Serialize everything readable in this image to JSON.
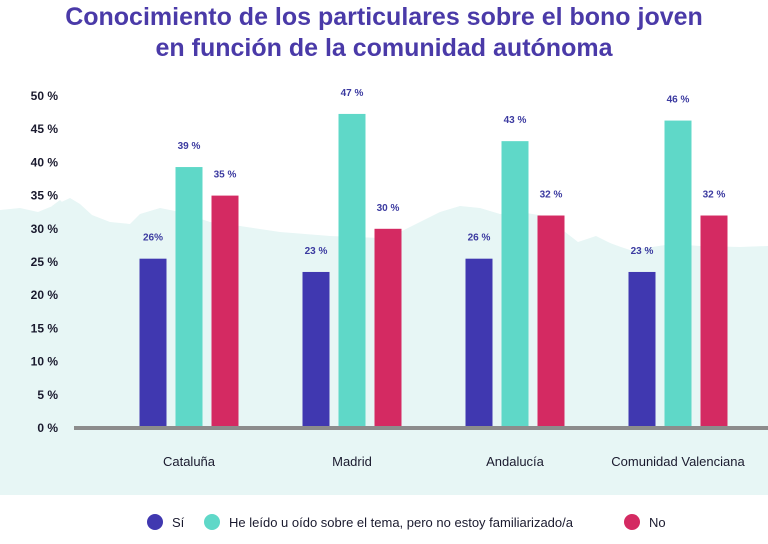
{
  "chart_data": {
    "type": "bar",
    "title": [
      "Conocimiento de los particulares sobre el bono joven",
      "en función de la comunidad autónoma"
    ],
    "categories": [
      "Cataluña",
      "Madrid",
      "Andalucía",
      "Comunidad Valenciana"
    ],
    "series": [
      {
        "name": "Sí",
        "color": "#4038b0",
        "values": [
          26,
          23,
          26,
          23
        ],
        "labels": [
          "26%",
          "23 %",
          "26 %",
          "23 %"
        ]
      },
      {
        "name": "He leído u oído sobre el tema, pero no estoy familiarizado/a",
        "color": "#5fd8c8",
        "values": [
          39,
          47,
          43,
          46
        ],
        "labels": [
          "39 %",
          "47 %",
          "43 %",
          "46 %"
        ]
      },
      {
        "name": "No",
        "color": "#d42a62",
        "values": [
          35,
          30,
          32,
          32
        ],
        "labels": [
          "35 %",
          "30 %",
          "32 %",
          "32 %"
        ]
      }
    ],
    "bar_heights": [
      [
        25.5,
        23.5,
        25.5,
        23.5
      ],
      [
        39.3,
        47.3,
        43.2,
        46.3
      ],
      [
        35,
        30,
        32,
        32
      ]
    ],
    "ylim": [
      0,
      50
    ],
    "yticks": [
      "0 %",
      "5 %",
      "10 %",
      "15 %",
      "20 %",
      "25 %",
      "30 %",
      "35 %",
      "40 %",
      "45 %",
      "50 %"
    ],
    "xlabel": "",
    "ylabel": "",
    "legend_position": "bottom",
    "grid": false
  }
}
